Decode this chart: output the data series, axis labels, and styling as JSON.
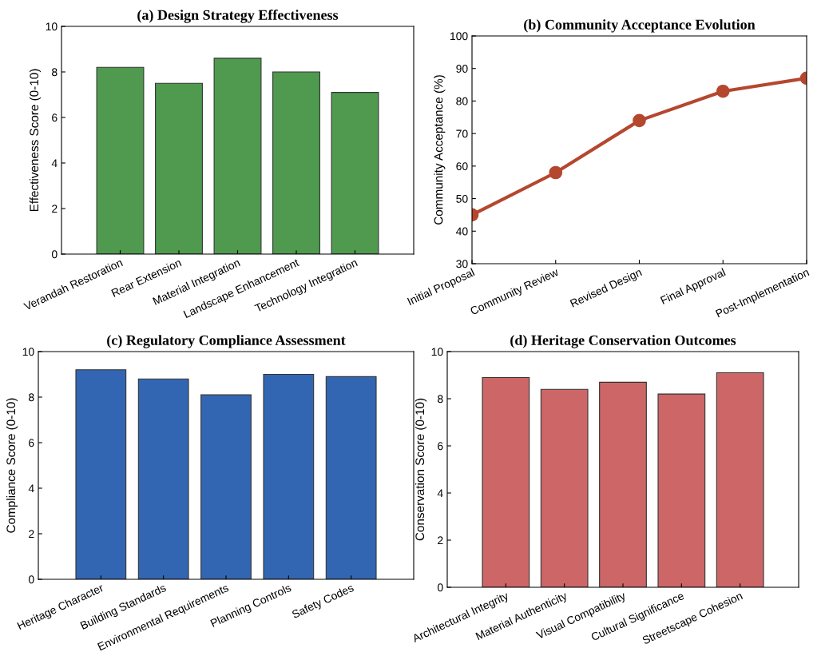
{
  "chart_data": [
    {
      "type": "bar",
      "title": "(a) Design Strategy Effectiveness",
      "ylabel": "Effectiveness Score (0-10)",
      "categories": [
        "Verandah Restoration",
        "Rear Extension",
        "Material Integration",
        "Landscape Enhancement",
        "Technology Integration"
      ],
      "values": [
        8.2,
        7.5,
        8.6,
        8.0,
        7.1
      ],
      "color": "#4f9a4f",
      "ylim": [
        0,
        10
      ],
      "yticks": [
        0,
        2,
        4,
        6,
        8,
        10
      ],
      "grid": false,
      "legend": false
    },
    {
      "type": "line",
      "title": "(b) Community Acceptance Evolution",
      "ylabel": "Community Acceptance (%)",
      "categories": [
        "Initial Proposal",
        "Community Review",
        "Revised Design",
        "Final Approval",
        "Post-Implementation"
      ],
      "values": [
        45,
        58,
        74,
        83,
        87
      ],
      "color": "#b5472f",
      "marker": "circle",
      "line_style": "solid",
      "ylim": [
        30,
        100
      ],
      "yticks": [
        30,
        40,
        50,
        60,
        70,
        80,
        90,
        100
      ],
      "grid": false,
      "legend": false
    },
    {
      "type": "bar",
      "title": "(c) Regulatory Compliance Assessment",
      "ylabel": "Compliance Score (0-10)",
      "categories": [
        "Heritage Character",
        "Building Standards",
        "Environmental Requirements",
        "Planning Controls",
        "Safety Codes"
      ],
      "values": [
        9.2,
        8.8,
        8.1,
        9.0,
        8.9
      ],
      "color": "#3366b2",
      "ylim": [
        0,
        10
      ],
      "yticks": [
        0,
        2,
        4,
        6,
        8,
        10
      ],
      "grid": false,
      "legend": false
    },
    {
      "type": "bar",
      "title": "(d) Heritage Conservation Outcomes",
      "ylabel": "Conservation Score (0-10)",
      "categories": [
        "Architectural Integrity",
        "Material Authenticity",
        "Visual Compatibility",
        "Cultural Significance",
        "Streetscape Cohesion"
      ],
      "values": [
        8.9,
        8.4,
        8.7,
        8.2,
        9.1
      ],
      "color": "#cd6666",
      "ylim": [
        0,
        10
      ],
      "yticks": [
        0,
        2,
        4,
        6,
        8,
        10
      ],
      "grid": false,
      "legend": false
    }
  ]
}
